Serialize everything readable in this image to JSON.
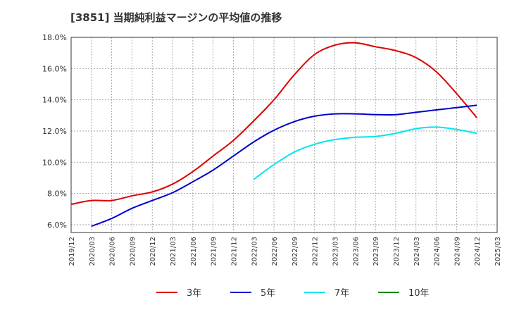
{
  "chart_data": {
    "type": "line",
    "title": "[3851]  当期純利益マージンの平均値の推移",
    "xlabel": "",
    "ylabel": "",
    "ylim": [
      5.5,
      18.0
    ],
    "y_ticks": [
      "6.0%",
      "8.0%",
      "10.0%",
      "12.0%",
      "14.0%",
      "16.0%",
      "18.0%"
    ],
    "y_tick_values": [
      6,
      8,
      10,
      12,
      14,
      16,
      18
    ],
    "x_ticks": [
      "2019/12",
      "2020/03",
      "2020/06",
      "2020/09",
      "2020/12",
      "2021/03",
      "2021/06",
      "2021/09",
      "2021/12",
      "2022/03",
      "2022/06",
      "2022/09",
      "2022/12",
      "2023/03",
      "2023/06",
      "2023/09",
      "2023/12",
      "2024/03",
      "2024/06",
      "2024/09",
      "2024/12",
      "2025/03"
    ],
    "grid": true,
    "legend_position": "bottom",
    "series": [
      {
        "name": "3年",
        "color": "#dd0000",
        "x": [
          "2019/12",
          "2020/03",
          "2020/06",
          "2020/09",
          "2020/12",
          "2021/03",
          "2021/06",
          "2021/09",
          "2021/12",
          "2022/03",
          "2022/06",
          "2022/09",
          "2022/12",
          "2023/03",
          "2023/06",
          "2023/09",
          "2023/12",
          "2024/03",
          "2024/06",
          "2024/09",
          "2024/12"
        ],
        "values": [
          7.3,
          7.55,
          7.55,
          7.85,
          8.1,
          8.6,
          9.4,
          10.4,
          11.4,
          12.65,
          14.0,
          15.6,
          16.9,
          17.5,
          17.65,
          17.4,
          17.15,
          16.7,
          15.8,
          14.4,
          12.85
        ]
      },
      {
        "name": "5年",
        "color": "#0000cc",
        "x": [
          "2020/03",
          "2020/06",
          "2020/09",
          "2020/12",
          "2021/03",
          "2021/06",
          "2021/09",
          "2021/12",
          "2022/03",
          "2022/06",
          "2022/09",
          "2022/12",
          "2023/03",
          "2023/06",
          "2023/09",
          "2023/12",
          "2024/03",
          "2024/06",
          "2024/09",
          "2024/12"
        ],
        "values": [
          5.9,
          6.4,
          7.05,
          7.55,
          8.05,
          8.75,
          9.5,
          10.4,
          11.3,
          12.05,
          12.6,
          12.95,
          13.1,
          13.1,
          13.05,
          13.05,
          13.2,
          13.35,
          13.5,
          13.65
        ]
      },
      {
        "name": "7年",
        "color": "#00e5ee",
        "x": [
          "2022/03",
          "2022/06",
          "2022/09",
          "2022/12",
          "2023/03",
          "2023/06",
          "2023/09",
          "2023/12",
          "2024/03",
          "2024/06",
          "2024/09",
          "2024/12"
        ],
        "values": [
          8.9,
          9.85,
          10.65,
          11.15,
          11.45,
          11.6,
          11.65,
          11.85,
          12.15,
          12.25,
          12.1,
          11.85
        ]
      },
      {
        "name": "10年",
        "color": "#008800",
        "x": [],
        "values": []
      }
    ]
  }
}
